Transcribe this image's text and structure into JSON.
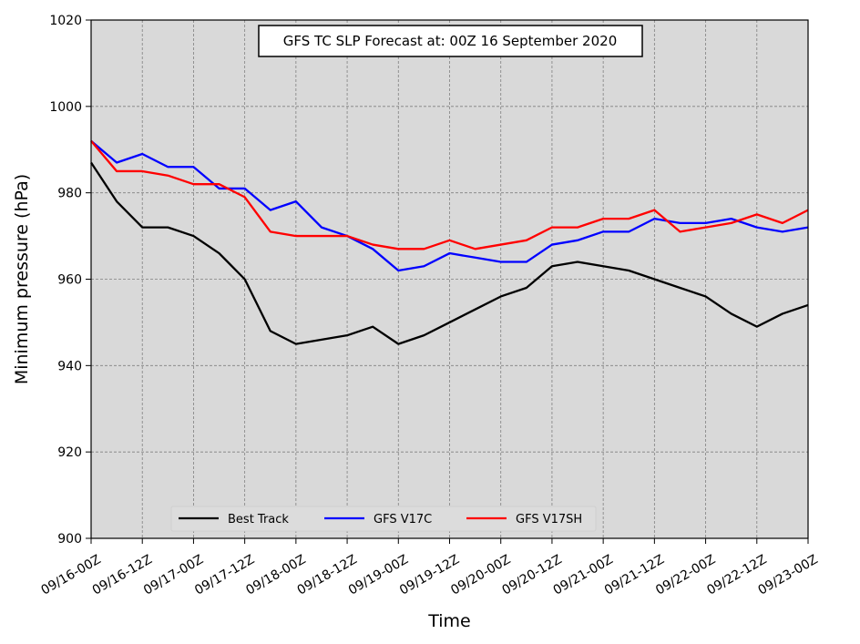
{
  "chart_data": {
    "type": "line",
    "title": "GFS TC SLP Forecast at: 00Z 16 September 2020",
    "xlabel": "Time",
    "ylabel": "Minimum pressure (hPa)",
    "ylim": [
      900,
      1020
    ],
    "yticks": [
      900,
      920,
      940,
      960,
      980,
      1000,
      1020
    ],
    "xtick_labels": [
      "09/16-00Z",
      "09/16-12Z",
      "09/17-00Z",
      "09/17-12Z",
      "09/18-00Z",
      "09/18-12Z",
      "09/19-00Z",
      "09/19-12Z",
      "09/20-00Z",
      "09/20-12Z",
      "09/21-00Z",
      "09/21-12Z",
      "09/22-00Z",
      "09/22-12Z",
      "09/23-00Z"
    ],
    "x_step_hours": 6,
    "grid": true,
    "background": "#d9d9d9",
    "legend_position": "lower-center",
    "series": [
      {
        "name": "Best Track",
        "color": "#000000",
        "values": [
          987,
          978,
          972,
          972,
          970,
          966,
          960,
          948,
          945,
          946,
          947,
          949,
          945,
          947,
          950,
          953,
          956,
          958,
          963,
          964,
          963,
          962,
          960,
          958,
          956,
          952,
          949,
          952,
          954
        ]
      },
      {
        "name": "GFS V17C",
        "color": "#0000ff",
        "values": [
          992,
          987,
          989,
          986,
          986,
          981,
          981,
          976,
          978,
          972,
          970,
          967,
          962,
          963,
          966,
          965,
          964,
          964,
          968,
          969,
          971,
          971,
          974,
          973,
          973,
          974,
          972,
          971,
          972
        ]
      },
      {
        "name": "GFS V17SH",
        "color": "#ff0000",
        "values": [
          992,
          985,
          985,
          984,
          982,
          982,
          979,
          971,
          970,
          970,
          970,
          968,
          967,
          967,
          969,
          967,
          968,
          969,
          972,
          972,
          974,
          974,
          976,
          971,
          972,
          973,
          975,
          973,
          976
        ]
      }
    ]
  }
}
